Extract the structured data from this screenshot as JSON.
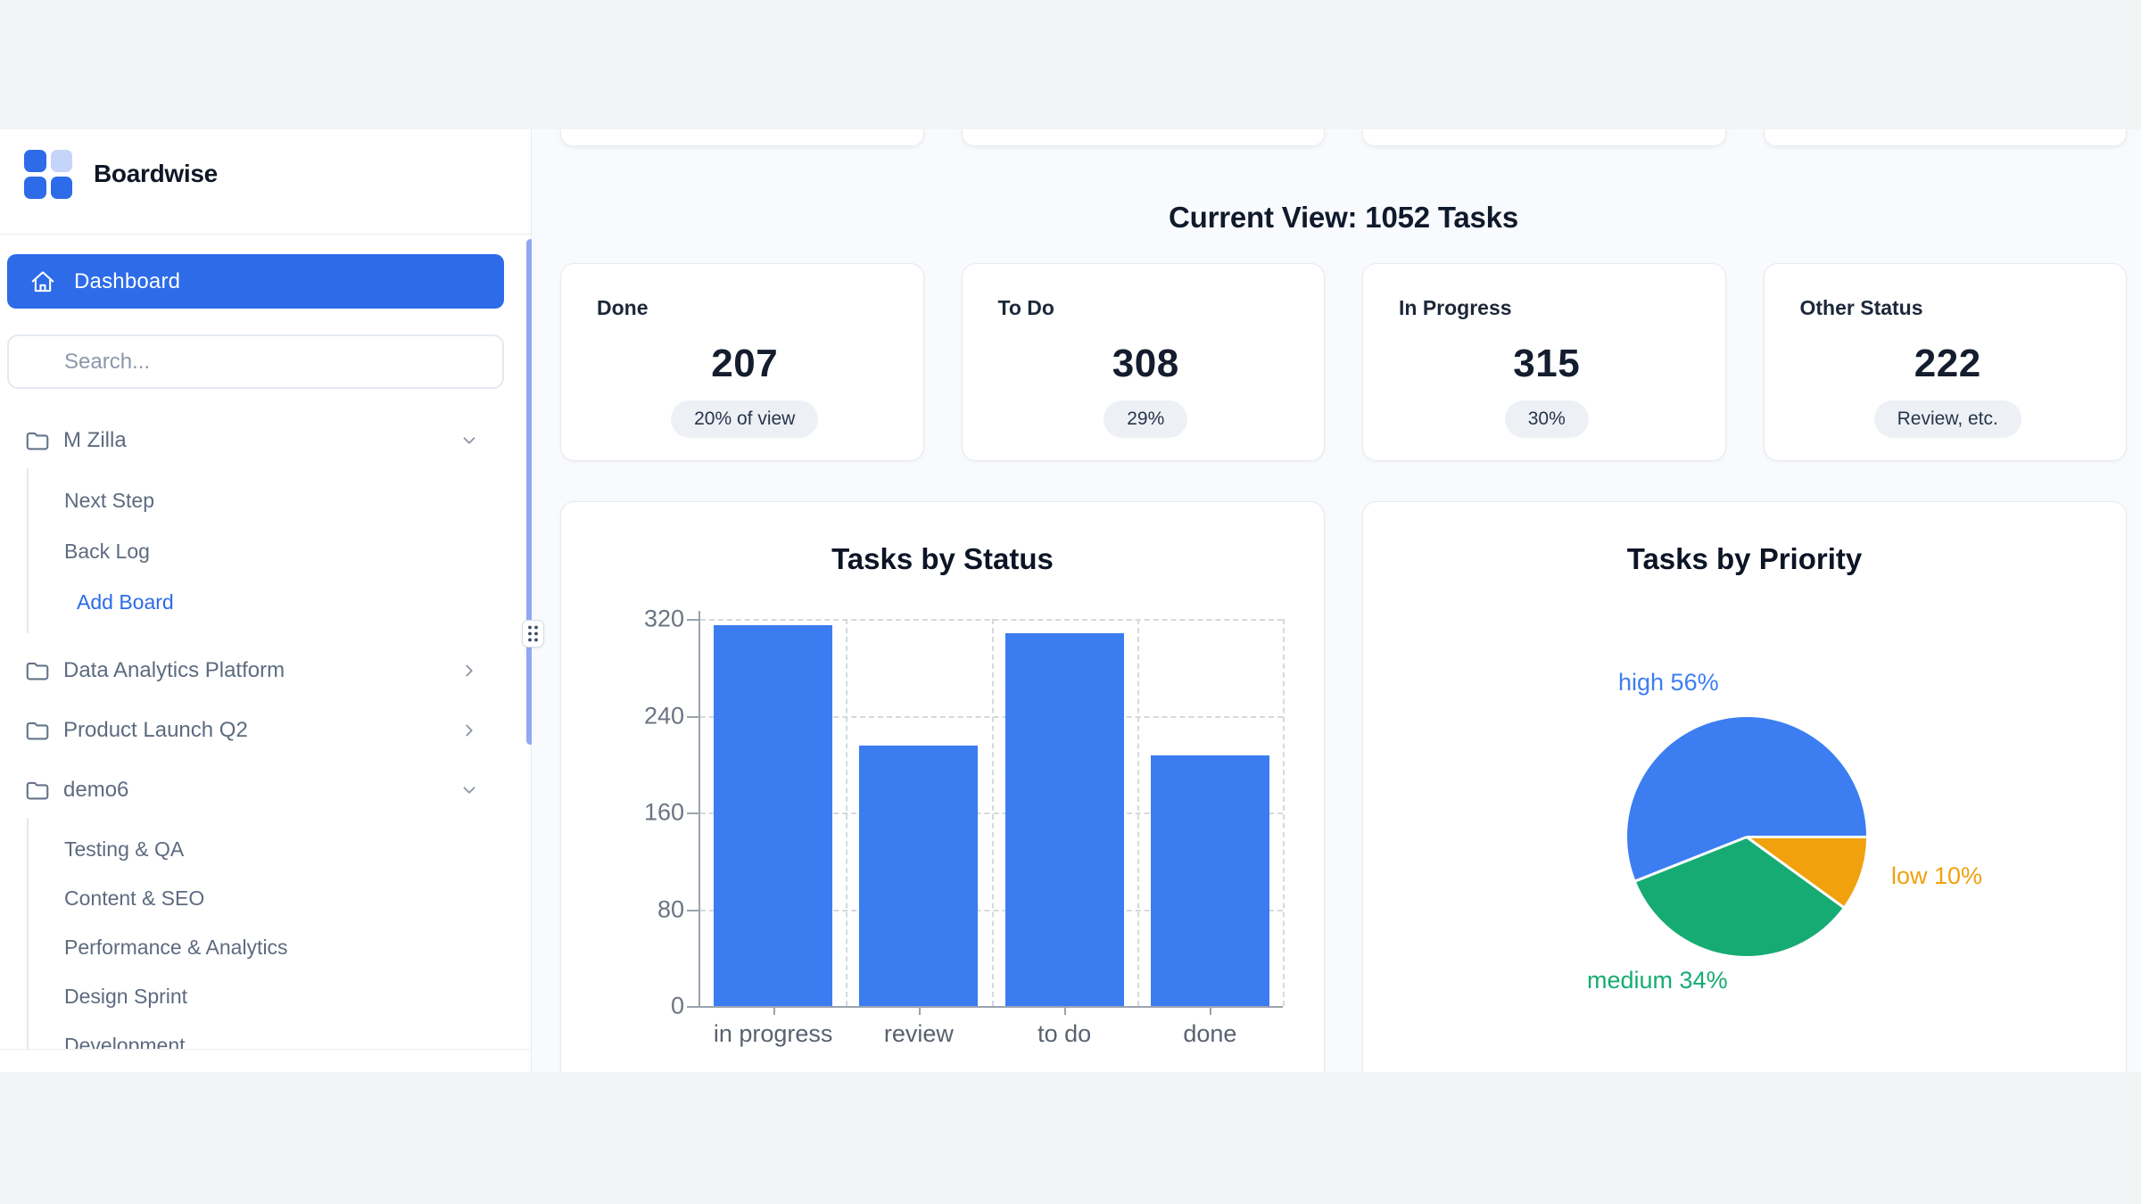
{
  "sidebar": {
    "brand": "Boardwise",
    "nav_dashboard": "Dashboard",
    "search_placeholder": "Search...",
    "projects": [
      {
        "label": "M Zilla",
        "state": "expanded",
        "children": [
          "Next Step",
          "Back Log"
        ],
        "action": "Add Board"
      },
      {
        "label": "Data Analytics Platform",
        "state": "collapsed"
      },
      {
        "label": "Product Launch Q2",
        "state": "collapsed"
      },
      {
        "label": "demo6",
        "state": "expanded",
        "children": [
          "Testing & QA",
          "Content & SEO",
          "Performance & Analytics",
          "Design Sprint",
          "Development"
        ]
      }
    ]
  },
  "main": {
    "heading": "Current View: 1052 Tasks",
    "stats": [
      {
        "label": "Done",
        "value": "207",
        "badge": "20% of view"
      },
      {
        "label": "To Do",
        "value": "308",
        "badge": "29%"
      },
      {
        "label": "In Progress",
        "value": "315",
        "badge": "30%"
      },
      {
        "label": "Other Status",
        "value": "222",
        "badge": "Review, etc."
      }
    ]
  },
  "chart_data": [
    {
      "type": "bar",
      "title": "Tasks by Status",
      "categories": [
        "in progress",
        "review",
        "to do",
        "done"
      ],
      "values": [
        315,
        215,
        308,
        207
      ],
      "yticks": [
        0,
        80,
        160,
        240,
        320
      ],
      "ylim": [
        0,
        320
      ],
      "bar_color": "#3b7df0",
      "grid": "dashed",
      "legend": false
    },
    {
      "type": "pie",
      "title": "Tasks by Priority",
      "slices": [
        {
          "label": "high",
          "pct": 56,
          "display": "high 56%",
          "color": "#3c7ef2"
        },
        {
          "label": "medium",
          "pct": 34,
          "display": "medium 34%",
          "color": "#17ab74"
        },
        {
          "label": "low",
          "pct": 10,
          "display": "low 10%",
          "color": "#f0a10d"
        }
      ],
      "start_angle": "east",
      "legend": "outside-labels"
    }
  ],
  "colors": {
    "accent": "#2d6be8",
    "bar": "#3b7df0",
    "pie_high": "#3c7ef2",
    "pie_medium": "#17ab74",
    "pie_low": "#f0a10d",
    "sidebar_scrollbar": "#90a8f2"
  }
}
